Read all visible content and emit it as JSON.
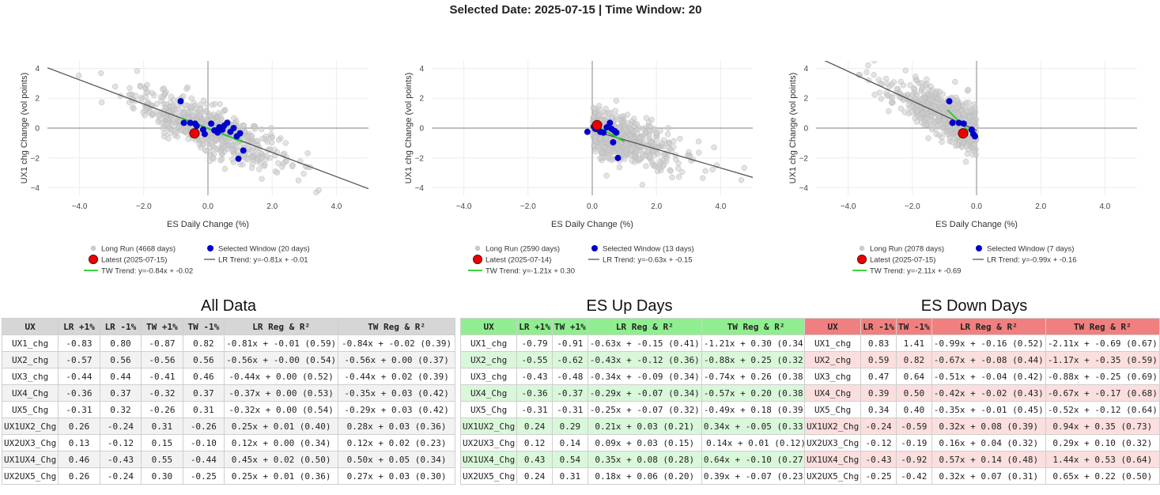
{
  "title": "Selected Date: 2025-07-15 | Time Window: 20",
  "colors": {
    "long_run": "#cccccc",
    "window": "#0000cc",
    "latest": "#ee0000",
    "lr_trend": "#555555",
    "tw_trend": "#22cc22"
  },
  "chart_data": [
    {
      "type": "scatter",
      "xlabel": "ES Daily Change (%)",
      "ylabel": "UX1 chg Change (vol points)",
      "xlim": [
        -5,
        5
      ],
      "ylim": [
        -4.5,
        4.5
      ],
      "xticks": [
        -4,
        -2,
        0,
        2,
        4
      ],
      "xtick_labels": [
        "−4.0",
        "−2.0",
        "0.0",
        "2.0",
        "4.0"
      ],
      "yticks": [
        -4,
        -2,
        0,
        2,
        4
      ],
      "ytick_labels": [
        "−4",
        "−2",
        "0",
        "2",
        "4"
      ],
      "grid": true,
      "long_run": {
        "name": "Long Run (4668 days)",
        "x_range": [
          -5,
          5
        ],
        "slope": -0.81,
        "intercept": -0.01
      },
      "window": {
        "name": "Selected Window (20 days)",
        "points": [
          [
            -0.85,
            1.8
          ],
          [
            -0.75,
            0.35
          ],
          [
            -0.4,
            0.3
          ],
          [
            -0.35,
            0.15
          ],
          [
            -0.15,
            -0.1
          ],
          [
            -0.1,
            -0.4
          ],
          [
            0.1,
            0.3
          ],
          [
            0.2,
            -0.15
          ],
          [
            0.35,
            0.05
          ],
          [
            0.45,
            -0.1
          ],
          [
            0.6,
            0.35
          ],
          [
            0.7,
            -0.25
          ],
          [
            0.8,
            0.0
          ],
          [
            0.9,
            -0.55
          ],
          [
            1.0,
            -0.35
          ],
          [
            0.95,
            -2.05
          ],
          [
            1.1,
            -1.5
          ],
          [
            -0.55,
            0.35
          ],
          [
            0.3,
            -0.3
          ],
          [
            0.5,
            0.15
          ]
        ]
      },
      "latest": {
        "name": "Latest (2025-07-15)",
        "x": -0.42,
        "y": -0.35
      },
      "lr_trend": {
        "name": "LR Trend: y=-0.81x + -0.01",
        "slope": -0.81,
        "intercept": -0.01,
        "x_range": [
          -5,
          5
        ]
      },
      "tw_trend": {
        "name": "TW Trend: y=-0.84x + -0.02",
        "slope": -0.84,
        "intercept": -0.02,
        "x_range": [
          -0.85,
          1.1
        ]
      }
    },
    {
      "type": "scatter",
      "xlabel": "ES Daily Change (%)",
      "ylabel": "UX1 chg Change (vol points)",
      "xlim": [
        -5,
        5
      ],
      "ylim": [
        -4.5,
        4.5
      ],
      "xticks": [
        -4,
        -2,
        0,
        2,
        4
      ],
      "xtick_labels": [
        "−4.0",
        "−2.0",
        "0.0",
        "2.0",
        "4.0"
      ],
      "yticks": [
        -4,
        -2,
        0,
        2,
        4
      ],
      "ytick_labels": [
        "−4",
        "−2",
        "0",
        "2",
        "4"
      ],
      "grid": true,
      "long_run": {
        "name": "Long Run (2590 days)",
        "x_range": [
          0,
          5
        ],
        "slope": -0.63,
        "intercept": -0.15
      },
      "window": {
        "name": "Selected Window (13 days)",
        "points": [
          [
            -0.15,
            -0.25
          ],
          [
            0.05,
            0.1
          ],
          [
            0.1,
            -0.05
          ],
          [
            0.25,
            -0.25
          ],
          [
            0.35,
            -0.3
          ],
          [
            0.45,
            0.05
          ],
          [
            0.55,
            0.35
          ],
          [
            0.6,
            -0.05
          ],
          [
            0.7,
            -0.2
          ],
          [
            0.75,
            -0.3
          ],
          [
            0.65,
            -0.95
          ],
          [
            0.8,
            -2.0
          ],
          [
            0.2,
            0.25
          ]
        ]
      },
      "latest": {
        "name": "Latest (2025-07-14)",
        "x": 0.15,
        "y": 0.2
      },
      "lr_trend": {
        "name": "LR Trend: y=-0.63x + -0.15",
        "slope": -0.63,
        "intercept": -0.15,
        "x_range": [
          0,
          5
        ]
      },
      "tw_trend": {
        "name": "TW Trend: y=-1.21x + 0.30",
        "slope": -1.21,
        "intercept": 0.3,
        "x_range": [
          0,
          1.0
        ]
      }
    },
    {
      "type": "scatter",
      "xlabel": "ES Daily Change (%)",
      "ylabel": "UX1 chg Change (vol points)",
      "xlim": [
        -5,
        5
      ],
      "ylim": [
        -4.5,
        4.5
      ],
      "xticks": [
        -4,
        -2,
        0,
        2,
        4
      ],
      "xtick_labels": [
        "−4.0",
        "−2.0",
        "0.0",
        "2.0",
        "4.0"
      ],
      "yticks": [
        -4,
        -2,
        0,
        2,
        4
      ],
      "ytick_labels": [
        "−4",
        "−2",
        "0",
        "2",
        "4"
      ],
      "grid": true,
      "long_run": {
        "name": "Long Run (2078 days)",
        "x_range": [
          -5,
          0
        ],
        "slope": -0.99,
        "intercept": -0.16
      },
      "window": {
        "name": "Selected Window (7 days)",
        "points": [
          [
            -0.85,
            1.8
          ],
          [
            -0.75,
            0.35
          ],
          [
            -0.55,
            0.35
          ],
          [
            -0.4,
            0.3
          ],
          [
            -0.15,
            -0.1
          ],
          [
            -0.1,
            -0.4
          ],
          [
            -0.05,
            -0.55
          ]
        ]
      },
      "latest": {
        "name": "Latest (2025-07-15)",
        "x": -0.42,
        "y": -0.35
      },
      "lr_trend": {
        "name": "LR Trend: y=-0.99x + -0.16",
        "slope": -0.99,
        "intercept": -0.16,
        "x_range": [
          -5,
          0
        ]
      },
      "tw_trend": {
        "name": "TW Trend: y=-2.11x + -0.69",
        "slope": -2.11,
        "intercept": -0.69,
        "x_range": [
          -0.9,
          0
        ]
      }
    }
  ],
  "tables": {
    "all": {
      "title": "All Data",
      "headers": [
        "UX",
        "LR +1%",
        "LR -1%",
        "TW +1%",
        "TW -1%",
        "LR Reg & R²",
        "TW Reg & R²"
      ],
      "rows": [
        [
          "UX1_chg",
          "-0.83",
          "0.80",
          "-0.87",
          "0.82",
          "-0.81x + -0.01 (0.59)",
          "-0.84x + -0.02 (0.39)"
        ],
        [
          "UX2_chg",
          "-0.57",
          "0.56",
          "-0.56",
          "0.56",
          "-0.56x + -0.00 (0.54)",
          "-0.56x + 0.00 (0.37)"
        ],
        [
          "UX3_chg",
          "-0.44",
          "0.44",
          "-0.41",
          "0.46",
          "-0.44x + 0.00 (0.52)",
          "-0.44x + 0.02 (0.39)"
        ],
        [
          "UX4_Chg",
          "-0.36",
          "0.37",
          "-0.32",
          "0.37",
          "-0.37x + 0.00 (0.53)",
          "-0.35x + 0.03 (0.42)"
        ],
        [
          "UX5_Chg",
          "-0.31",
          "0.32",
          "-0.26",
          "0.31",
          "-0.32x + 0.00 (0.54)",
          "-0.29x + 0.03 (0.42)"
        ],
        [
          "UX1UX2_Chg",
          "0.26",
          "-0.24",
          "0.31",
          "-0.26",
          "0.25x + 0.01 (0.40)",
          "0.28x + 0.03 (0.36)"
        ],
        [
          "UX2UX3_Chg",
          "0.13",
          "-0.12",
          "0.15",
          "-0.10",
          "0.12x + 0.00 (0.34)",
          "0.12x + 0.02 (0.23)"
        ],
        [
          "UX1UX4_Chg",
          "0.46",
          "-0.43",
          "0.55",
          "-0.44",
          "0.45x + 0.02 (0.50)",
          "0.50x + 0.05 (0.34)"
        ],
        [
          "UX2UX5_Chg",
          "0.26",
          "-0.24",
          "0.30",
          "-0.25",
          "0.25x + 0.01 (0.36)",
          "0.27x + 0.03 (0.30)"
        ]
      ]
    },
    "up": {
      "title": "ES Up Days",
      "headers": [
        "UX",
        "LR +1%",
        "TW +1%",
        "LR Reg & R²",
        "TW Reg & R²"
      ],
      "rows": [
        [
          "UX1_chg",
          "-0.79",
          "-0.91",
          "-0.63x + -0.15 (0.41)",
          "-1.21x + 0.30 (0.34)"
        ],
        [
          "UX2_chg",
          "-0.55",
          "-0.62",
          "-0.43x + -0.12 (0.36)",
          "-0.88x + 0.25 (0.32)"
        ],
        [
          "UX3_chg",
          "-0.43",
          "-0.48",
          "-0.34x + -0.09 (0.34)",
          "-0.74x + 0.26 (0.38)"
        ],
        [
          "UX4_Chg",
          "-0.36",
          "-0.37",
          "-0.29x + -0.07 (0.34)",
          "-0.57x + 0.20 (0.38)"
        ],
        [
          "UX5_Chg",
          "-0.31",
          "-0.31",
          "-0.25x + -0.07 (0.32)",
          "-0.49x + 0.18 (0.39)"
        ],
        [
          "UX1UX2_Chg",
          "0.24",
          "0.29",
          "0.21x + 0.03 (0.21)",
          "0.34x + -0.05 (0.33)"
        ],
        [
          "UX2UX3_Chg",
          "0.12",
          "0.14",
          "0.09x + 0.03 (0.15)",
          "0.14x + 0.01 (0.12)"
        ],
        [
          "UX1UX4_Chg",
          "0.43",
          "0.54",
          "0.35x + 0.08 (0.28)",
          "0.64x + -0.10 (0.27)"
        ],
        [
          "UX2UX5_Chg",
          "0.24",
          "0.31",
          "0.18x + 0.06 (0.20)",
          "0.39x + -0.07 (0.23)"
        ]
      ]
    },
    "down": {
      "title": "ES Down Days",
      "headers": [
        "UX",
        "LR -1%",
        "TW -1%",
        "LR Reg & R²",
        "TW Reg & R²"
      ],
      "rows": [
        [
          "UX1_chg",
          "0.83",
          "1.41",
          "-0.99x + -0.16 (0.52)",
          "-2.11x + -0.69 (0.67)"
        ],
        [
          "UX2_chg",
          "0.59",
          "0.82",
          "-0.67x + -0.08 (0.44)",
          "-1.17x + -0.35 (0.59)"
        ],
        [
          "UX3_chg",
          "0.47",
          "0.64",
          "-0.51x + -0.04 (0.42)",
          "-0.88x + -0.25 (0.69)"
        ],
        [
          "UX4_Chg",
          "0.39",
          "0.50",
          "-0.42x + -0.02 (0.43)",
          "-0.67x + -0.17 (0.68)"
        ],
        [
          "UX5_Chg",
          "0.34",
          "0.40",
          "-0.35x + -0.01 (0.45)",
          "-0.52x + -0.12 (0.64)"
        ],
        [
          "UX1UX2_Chg",
          "-0.24",
          "-0.59",
          "0.32x + 0.08 (0.39)",
          "0.94x + 0.35 (0.73)"
        ],
        [
          "UX2UX3_Chg",
          "-0.12",
          "-0.19",
          "0.16x + 0.04 (0.32)",
          "0.29x + 0.10 (0.32)"
        ],
        [
          "UX1UX4_Chg",
          "-0.43",
          "-0.92",
          "0.57x + 0.14 (0.48)",
          "1.44x + 0.53 (0.64)"
        ],
        [
          "UX2UX5_Chg",
          "-0.25",
          "-0.42",
          "0.32x + 0.07 (0.31)",
          "0.65x + 0.22 (0.50)"
        ]
      ]
    }
  }
}
